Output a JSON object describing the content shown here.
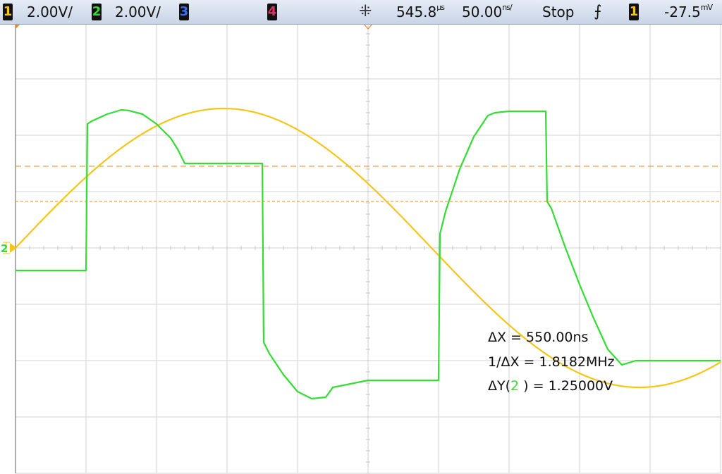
{
  "topbar": {
    "ch1": {
      "num": "1",
      "scale": "2.00V/",
      "color": "#f5c518"
    },
    "ch2": {
      "num": "2",
      "scale": "2.00V/",
      "color": "#33dd33"
    },
    "ch3": {
      "num": "3",
      "color": "#3d6df0"
    },
    "ch4": {
      "num": "4",
      "color": "#e0306a"
    },
    "delay": {
      "value": "545.8",
      "unit": "µs"
    },
    "timebase": {
      "value": "50.00",
      "unit": "ns/"
    },
    "run_state": "Stop",
    "trigger": {
      "source": "1",
      "level": "-27.5",
      "unit": "mV"
    }
  },
  "measurements": {
    "dx_label": "ΔX = ",
    "dx_value": "550.00ns",
    "inv_dx_label": "1/ΔX = ",
    "inv_dx_value": "1.8182MHz",
    "dy_label_pre": "ΔY(",
    "dy_channel": "2",
    "dy_label_post": " ) = ",
    "dy_value": "1.25000V"
  },
  "ground_marker": {
    "label": "2"
  },
  "chart_data": {
    "type": "line",
    "title": "",
    "xlabel": "",
    "ylabel": "",
    "x_unit": "ns",
    "y_unit": "V",
    "xlim": [
      -250,
      250
    ],
    "ylim": [
      -8,
      8
    ],
    "grid": true,
    "grid_divisions": {
      "x": 10,
      "y": 8
    },
    "series": [
      {
        "color": "#f5c518",
        "kind": "sine",
        "amplitude": 4.95,
        "period": 590,
        "phase_zero_cross_x": -250,
        "offset": 0
      },
      {
        "color": "#33dd33",
        "points": [
          [
            -250,
            -0.8
          ],
          [
            -200,
            -0.8
          ],
          [
            -199,
            4.4
          ],
          [
            -196,
            4.5
          ],
          [
            -185,
            4.75
          ],
          [
            -175,
            4.9
          ],
          [
            -170,
            4.88
          ],
          [
            -160,
            4.75
          ],
          [
            -150,
            4.4
          ],
          [
            -140,
            3.9
          ],
          [
            -135,
            3.5
          ],
          [
            -130,
            3.0
          ],
          [
            -128,
            3.0
          ],
          [
            -100,
            3.0
          ],
          [
            -75,
            3.0
          ],
          [
            -74,
            -3.35
          ],
          [
            -70,
            -3.75
          ],
          [
            -60,
            -4.5
          ],
          [
            -50,
            -5.1
          ],
          [
            -40,
            -5.35
          ],
          [
            -30,
            -5.3
          ],
          [
            -25,
            -4.95
          ],
          [
            0,
            -4.7
          ],
          [
            20,
            -4.7
          ],
          [
            25,
            -4.7
          ],
          [
            50,
            -4.7
          ],
          [
            51,
            0.5
          ],
          [
            55,
            1.3
          ],
          [
            65,
            2.8
          ],
          [
            75,
            3.95
          ],
          [
            85,
            4.7
          ],
          [
            90,
            4.8
          ],
          [
            100,
            4.85
          ],
          [
            115,
            4.85
          ],
          [
            125,
            4.85
          ],
          [
            126,
            4.85
          ],
          [
            127,
            1.65
          ],
          [
            130,
            1.4
          ],
          [
            140,
            0
          ],
          [
            150,
            -1.3
          ],
          [
            160,
            -2.5
          ],
          [
            170,
            -3.6
          ],
          [
            180,
            -4.15
          ],
          [
            190,
            -4.0
          ],
          [
            200,
            -4.0
          ],
          [
            250,
            -4.0
          ]
        ]
      }
    ],
    "cursors_y": [
      {
        "value": 2.9,
        "color": "#f08a1e"
      },
      {
        "value": 1.65,
        "color": "#f08a1e"
      }
    ]
  }
}
